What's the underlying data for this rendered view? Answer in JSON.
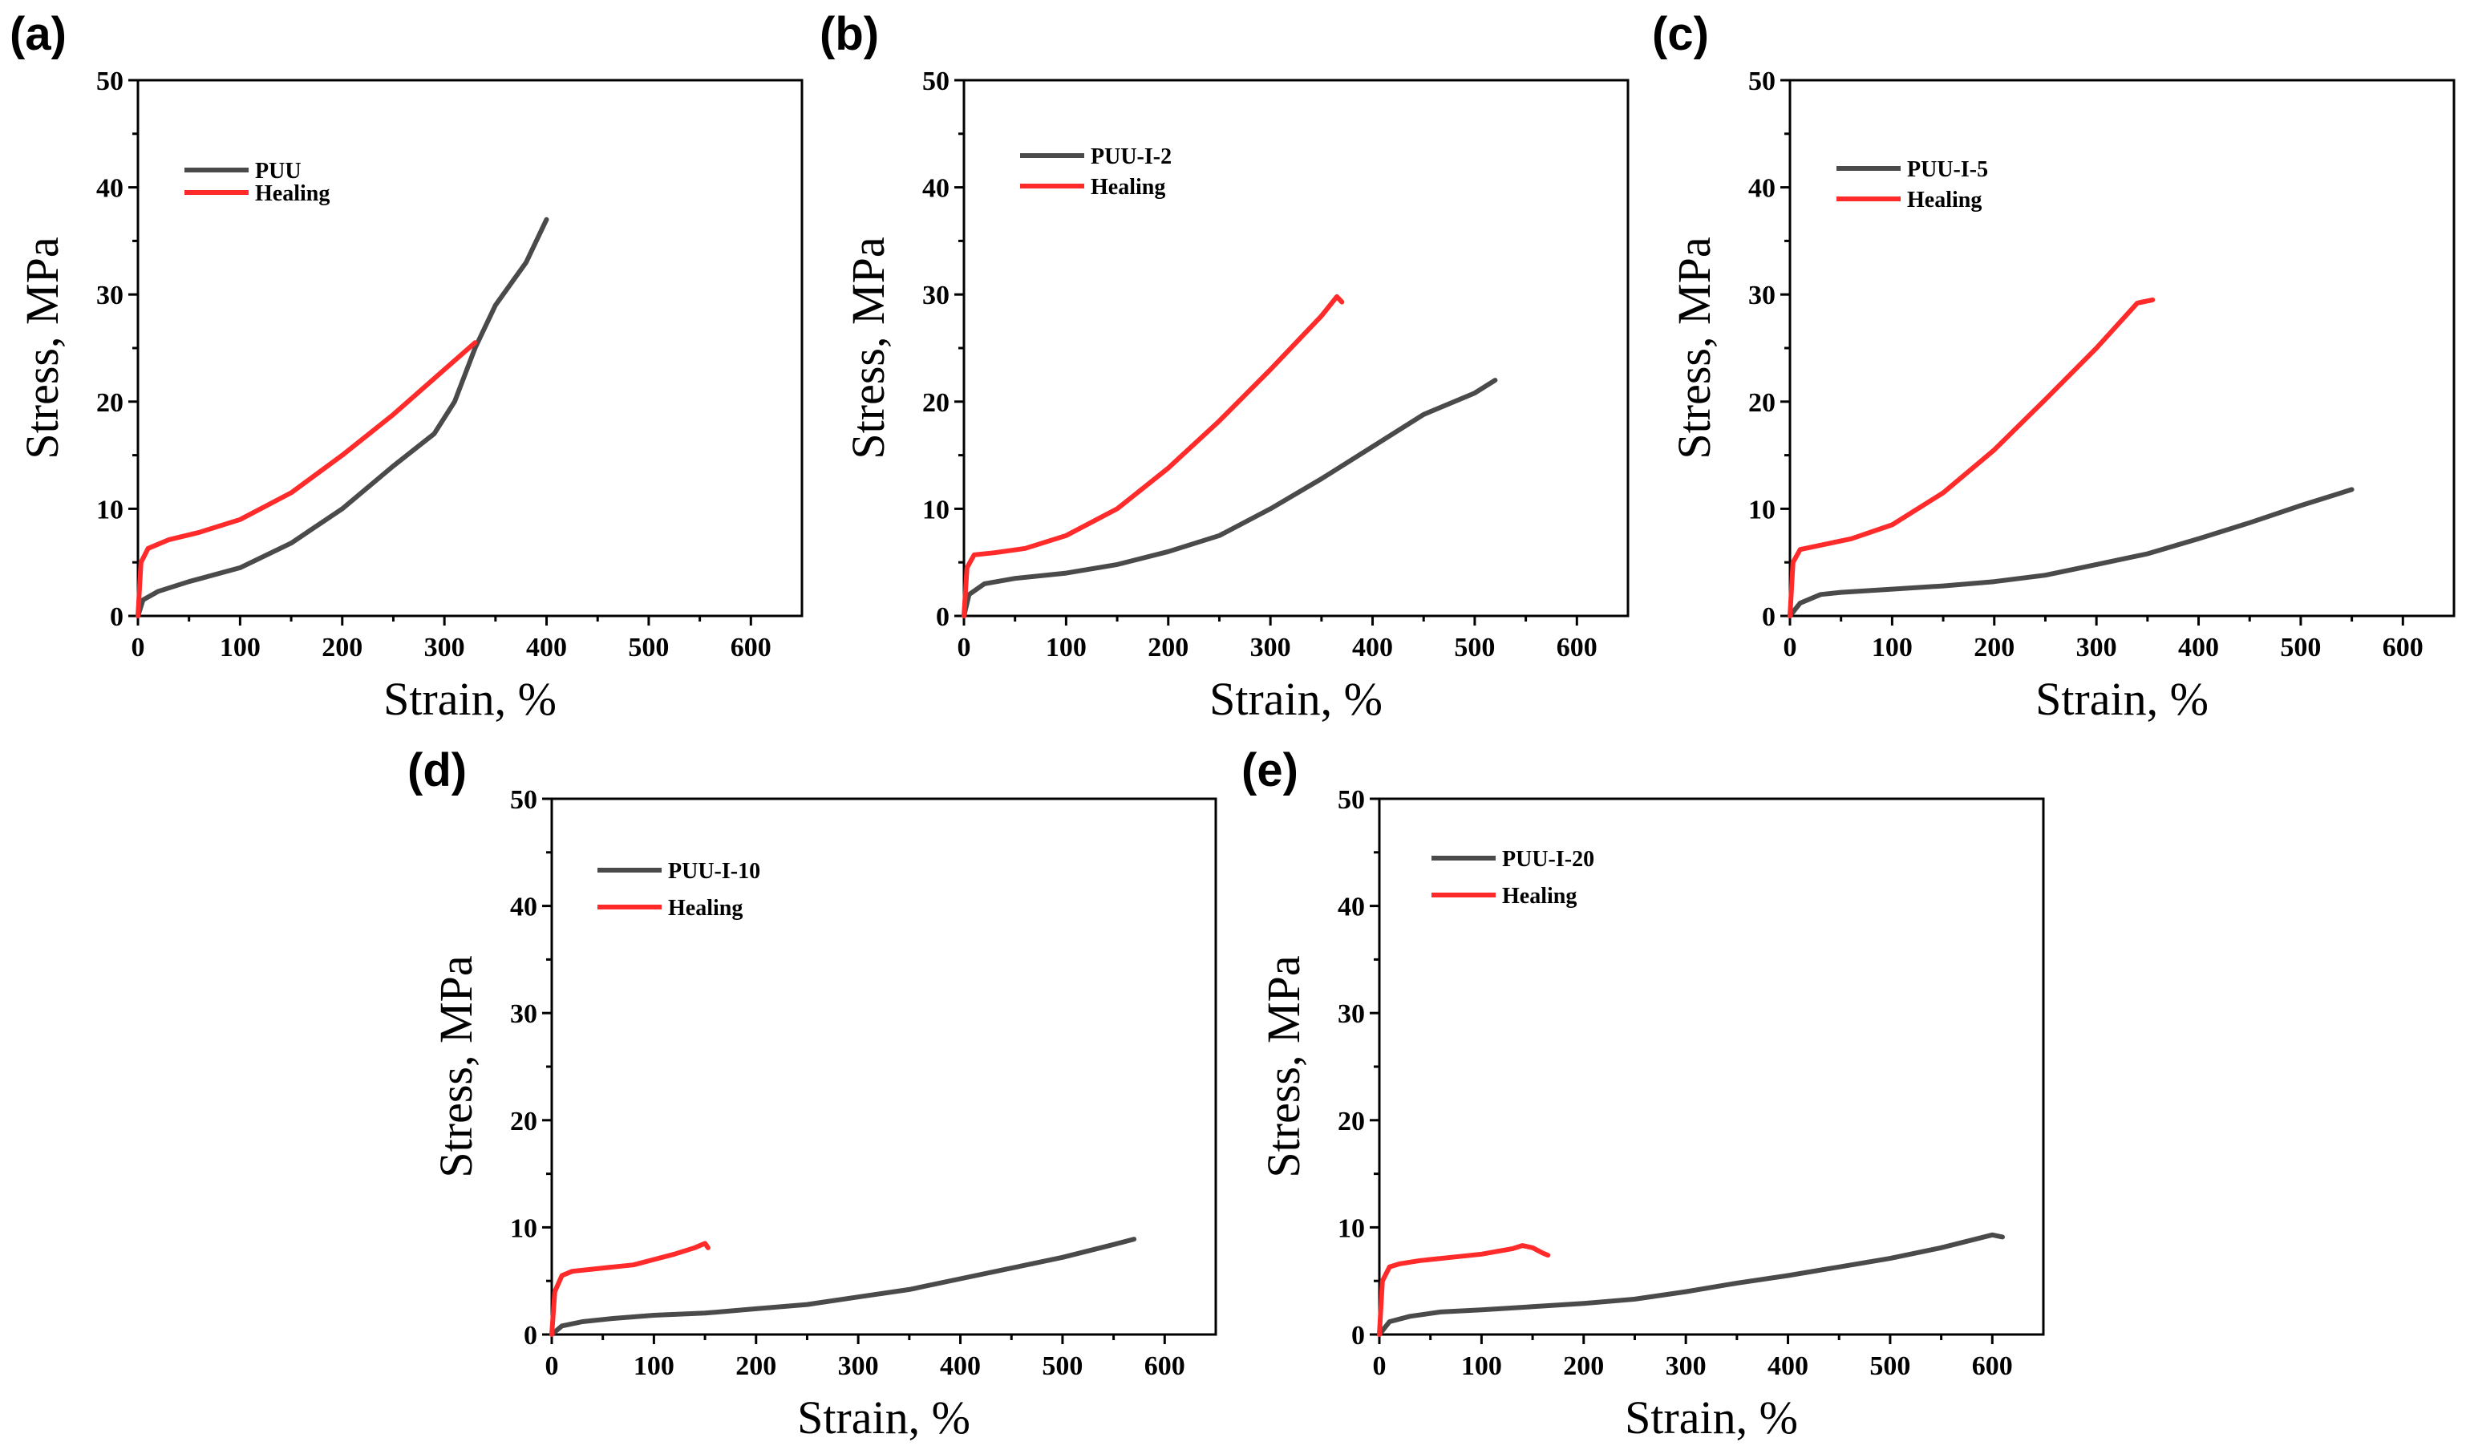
{
  "colors": {
    "original": "#4a4a4a",
    "healing": "#ff2a2a"
  },
  "chart_data": [
    {
      "panel": "(a)",
      "type": "line",
      "xlabel": "Strain, %",
      "ylabel": "Stress, MPa",
      "xlim": [
        0,
        650
      ],
      "ylim": [
        0,
        50
      ],
      "xticks": [
        "0",
        "100",
        "200",
        "300",
        "400",
        "500",
        "600"
      ],
      "yticks": [
        "0",
        "10",
        "20",
        "30",
        "40",
        "50"
      ],
      "legend": "top-left",
      "series": [
        {
          "name": "PUU",
          "color_key": "original",
          "x": [
            0,
            5,
            20,
            50,
            100,
            150,
            200,
            250,
            290,
            310,
            330,
            350,
            380,
            400
          ],
          "y": [
            0,
            1.5,
            2.3,
            3.2,
            4.5,
            6.8,
            10,
            14,
            17,
            20,
            25,
            29,
            33,
            37
          ]
        },
        {
          "name": "Healing",
          "color_key": "healing",
          "x": [
            0,
            3,
            10,
            30,
            60,
            100,
            150,
            200,
            250,
            300,
            330
          ],
          "y": [
            0,
            5,
            6.3,
            7.1,
            7.8,
            9,
            11.5,
            15,
            18.8,
            23,
            25.5
          ]
        }
      ]
    },
    {
      "panel": "(b)",
      "type": "line",
      "xlabel": "Strain, %",
      "ylabel": "Stress, MPa",
      "xlim": [
        0,
        650
      ],
      "ylim": [
        0,
        50
      ],
      "xticks": [
        "0",
        "100",
        "200",
        "300",
        "400",
        "500",
        "600"
      ],
      "yticks": [
        "0",
        "10",
        "20",
        "30",
        "40",
        "50"
      ],
      "legend": "top-left",
      "series": [
        {
          "name": "PUU-I-2",
          "color_key": "original",
          "x": [
            0,
            5,
            20,
            50,
            100,
            150,
            200,
            250,
            300,
            350,
            400,
            450,
            500,
            520
          ],
          "y": [
            0,
            2,
            3,
            3.5,
            4,
            4.8,
            6,
            7.5,
            10,
            12.8,
            15.8,
            18.8,
            20.8,
            22
          ]
        },
        {
          "name": "Healing",
          "color_key": "healing",
          "x": [
            0,
            3,
            10,
            30,
            60,
            100,
            150,
            200,
            250,
            300,
            350,
            365,
            370
          ],
          "y": [
            0,
            4.5,
            5.7,
            5.9,
            6.3,
            7.5,
            10,
            13.8,
            18.2,
            23,
            28,
            29.8,
            29.3
          ]
        }
      ]
    },
    {
      "panel": "(c)",
      "type": "line",
      "xlabel": "Strain, %",
      "ylabel": "Stress, MPa",
      "xlim": [
        0,
        650
      ],
      "ylim": [
        0,
        50
      ],
      "xticks": [
        "0",
        "100",
        "200",
        "300",
        "400",
        "500",
        "600"
      ],
      "yticks": [
        "0",
        "10",
        "20",
        "30",
        "40",
        "50"
      ],
      "legend": "top-left",
      "series": [
        {
          "name": "PUU-I-5",
          "color_key": "original",
          "x": [
            0,
            10,
            30,
            50,
            100,
            150,
            200,
            250,
            300,
            350,
            400,
            450,
            500,
            550
          ],
          "y": [
            0,
            1.2,
            2,
            2.2,
            2.5,
            2.8,
            3.2,
            3.8,
            4.8,
            5.8,
            7.2,
            8.7,
            10.3,
            11.8
          ]
        },
        {
          "name": "Healing",
          "color_key": "healing",
          "x": [
            0,
            3,
            10,
            30,
            60,
            100,
            150,
            200,
            250,
            300,
            340,
            355
          ],
          "y": [
            0,
            5,
            6.2,
            6.6,
            7.2,
            8.5,
            11.5,
            15.5,
            20.2,
            25,
            29.2,
            29.5
          ]
        }
      ]
    },
    {
      "panel": "(d)",
      "type": "line",
      "xlabel": "Strain, %",
      "ylabel": "Stress, MPa",
      "xlim": [
        0,
        650
      ],
      "ylim": [
        0,
        50
      ],
      "xticks": [
        "0",
        "100",
        "200",
        "300",
        "400",
        "500",
        "600"
      ],
      "yticks": [
        "0",
        "10",
        "20",
        "30",
        "40",
        "50"
      ],
      "legend": "top-left",
      "series": [
        {
          "name": "PUU-I-10",
          "color_key": "original",
          "x": [
            0,
            10,
            30,
            60,
            100,
            150,
            200,
            250,
            300,
            350,
            400,
            450,
            500,
            550,
            570
          ],
          "y": [
            0,
            0.8,
            1.2,
            1.5,
            1.8,
            2,
            2.4,
            2.8,
            3.5,
            4.2,
            5.2,
            6.2,
            7.2,
            8.4,
            8.9
          ]
        },
        {
          "name": "Healing",
          "color_key": "healing",
          "x": [
            0,
            3,
            10,
            20,
            40,
            60,
            80,
            100,
            120,
            140,
            150,
            153
          ],
          "y": [
            0,
            4,
            5.5,
            5.9,
            6.1,
            6.3,
            6.5,
            7,
            7.5,
            8.1,
            8.5,
            8.1
          ]
        }
      ]
    },
    {
      "panel": "(e)",
      "type": "line",
      "xlabel": "Strain, %",
      "ylabel": "Stress, MPa",
      "xlim": [
        0,
        650
      ],
      "ylim": [
        0,
        50
      ],
      "xticks": [
        "0",
        "100",
        "200",
        "300",
        "400",
        "500",
        "600"
      ],
      "yticks": [
        "0",
        "10",
        "20",
        "30",
        "40",
        "50"
      ],
      "legend": "top-left",
      "series": [
        {
          "name": "PUU-I-20",
          "color_key": "original",
          "x": [
            0,
            10,
            30,
            60,
            100,
            150,
            200,
            250,
            300,
            350,
            400,
            450,
            500,
            550,
            600,
            610
          ],
          "y": [
            0,
            1.2,
            1.7,
            2.1,
            2.3,
            2.6,
            2.9,
            3.3,
            4,
            4.8,
            5.5,
            6.3,
            7.1,
            8.1,
            9.3,
            9.1
          ]
        },
        {
          "name": "Healing",
          "color_key": "healing",
          "x": [
            0,
            3,
            10,
            20,
            40,
            70,
            100,
            130,
            140,
            150,
            160,
            165
          ],
          "y": [
            0,
            5,
            6.3,
            6.6,
            6.9,
            7.2,
            7.5,
            8,
            8.3,
            8.1,
            7.6,
            7.4
          ]
        }
      ]
    }
  ]
}
